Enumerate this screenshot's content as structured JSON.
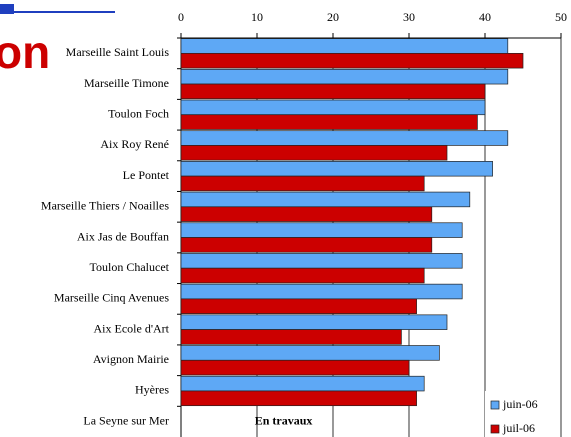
{
  "chart_data": {
    "type": "bar",
    "orientation": "horizontal",
    "categories": [
      "Marseille Saint Louis",
      "Marseille Timone",
      "Toulon Foch",
      "Aix Roy René",
      "Le Pontet",
      "Marseille Thiers / Noailles",
      "Aix Jas de Bouffan",
      "Toulon Chalucet",
      "Marseille Cinq Avenues",
      "Aix Ecole d'Art",
      "Avignon Mairie",
      "Hyères",
      "La Seyne sur Mer"
    ],
    "series": [
      {
        "name": "juin-06",
        "color": "#5ea8f5",
        "values": [
          43,
          43,
          40,
          43,
          41,
          38,
          37,
          37,
          37,
          35,
          34,
          32,
          null
        ]
      },
      {
        "name": "juil-06",
        "color": "#cc0000",
        "values": [
          45,
          40,
          39,
          35,
          32,
          33,
          33,
          32,
          31,
          29,
          30,
          31,
          null
        ]
      }
    ],
    "xlim": [
      0,
      50
    ],
    "xticks": [
      0,
      10,
      20,
      30,
      40,
      50
    ],
    "grid": true,
    "legend": "bottom-right",
    "annotations": [
      "En travaux",
      "on"
    ]
  }
}
